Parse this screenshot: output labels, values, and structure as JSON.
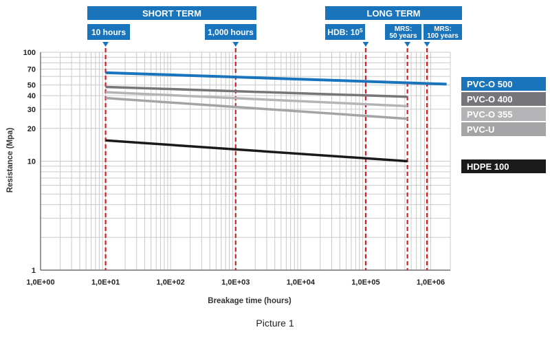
{
  "caption": "Picture 1",
  "chart_data": {
    "type": "line",
    "title": "",
    "xlabel": "Breakage time (hours)",
    "ylabel": "Resistance (Mpa)",
    "x_scale": "log",
    "y_scale": "log",
    "xlim": [
      1,
      2000000
    ],
    "ylim": [
      1,
      100
    ],
    "x_tick_labels": [
      "1,0E+00",
      "1,0E+01",
      "1,0E+02",
      "1,0E+03",
      "1,0E+04",
      "1,0E+05",
      "1,0E+06"
    ],
    "y_tick_labels": [
      "1",
      "10",
      "20",
      "30",
      "40",
      "50",
      "70",
      "100"
    ],
    "grid": true,
    "legend_position": "right",
    "section_headers": [
      {
        "label": "SHORT TERM",
        "x_range": [
          10,
          1000
        ]
      },
      {
        "label": "LONG TERM",
        "x_range": [
          100000,
          1600000
        ]
      }
    ],
    "markers": [
      {
        "label": "10 hours",
        "x": 10
      },
      {
        "label": "1,000 hours",
        "x": 1000
      },
      {
        "label": "HDB: 10",
        "sup": "5",
        "x": 100000
      },
      {
        "label": "MRS:",
        "label2": "50 years",
        "x": 438000
      },
      {
        "label": "MRS:",
        "label2": "100 years",
        "x": 876000
      }
    ],
    "series": [
      {
        "name": "PVC-O 500",
        "color": "#1a74bb",
        "x": [
          10,
          1752000
        ],
        "y": [
          65,
          51
        ]
      },
      {
        "name": "PVC-O 400",
        "color": "#76767a",
        "x": [
          10,
          438000
        ],
        "y": [
          48,
          39
        ]
      },
      {
        "name": "PVC-O 355",
        "color": "#b4b4b6",
        "x": [
          10,
          438000
        ],
        "y": [
          43,
          32
        ]
      },
      {
        "name": "PVC-U",
        "color": "#a4a4a6",
        "x": [
          10,
          438000
        ],
        "y": [
          38,
          24.5
        ]
      },
      {
        "name": "HDPE 100",
        "color": "#1a1a1a",
        "x": [
          10,
          438000
        ],
        "y": [
          15.5,
          10
        ]
      }
    ],
    "accent_color": "#1a74bb",
    "marker_line_color": "#d21f26"
  }
}
